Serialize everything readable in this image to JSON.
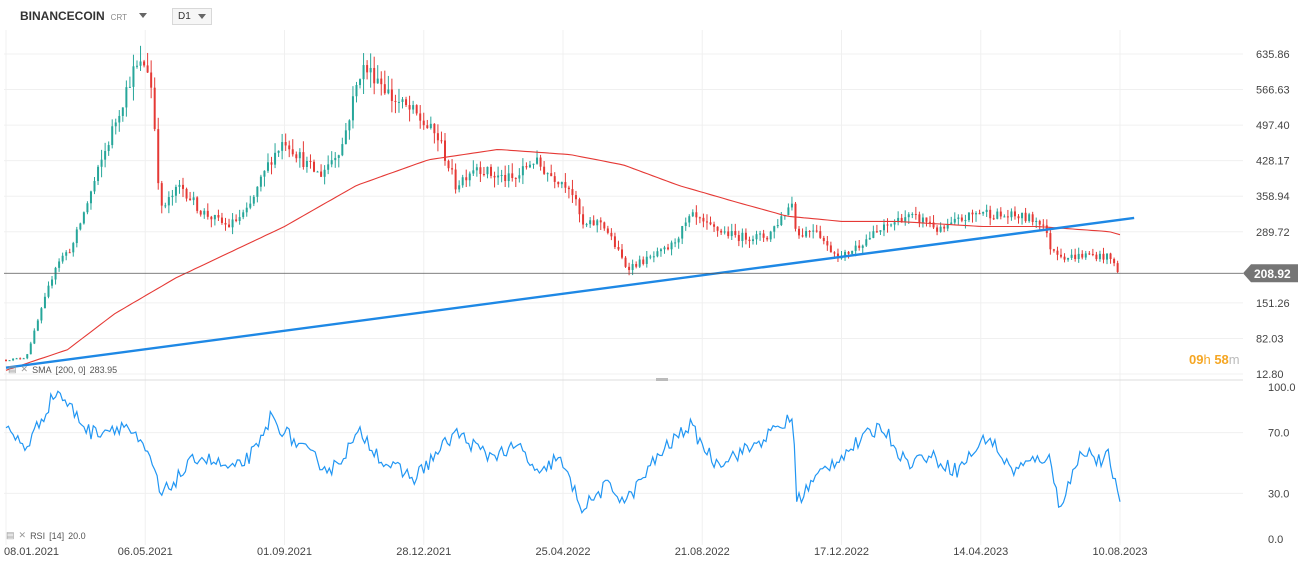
{
  "header": {
    "symbol": "BINANCECOIN",
    "symbol_sub": "CRT",
    "timeframe": "D1"
  },
  "price_axis_ticks": [
    "635.86",
    "566.63",
    "497.40",
    "428.17",
    "358.94",
    "289.72",
    "151.26",
    "82.03",
    "12.80"
  ],
  "current_price": "208.92",
  "countdown": {
    "hours": "09",
    "h_unit": "h",
    "minutes": "58",
    "m_unit": "m"
  },
  "sma_label": {
    "name": "SMA",
    "params": "[200, 0]",
    "value": "283.95"
  },
  "rsi_label": {
    "name": "RSI",
    "params": "[14]",
    "value": "20.0"
  },
  "rsi_axis_ticks": [
    "100.0",
    "70.0",
    "30.0",
    "0.0"
  ],
  "date_ticks": [
    "08.01.2021",
    "06.05.2021",
    "01.09.2021",
    "28.12.2021",
    "25.04.2022",
    "21.08.2022",
    "17.12.2022",
    "14.04.2023",
    "10.08.2023"
  ],
  "colors": {
    "bull": "#26a69a",
    "bear": "#e53935",
    "sma": "#e53935",
    "trendline": "#1e88e5",
    "rsi": "#2196f3",
    "price_label_bg": "#757575"
  },
  "chart_data": [
    {
      "type": "candlestick",
      "title": "BINANCECOIN CRT D1",
      "x_range": [
        "08.01.2021",
        "10.08.2023"
      ],
      "ylim": [
        12.8,
        670
      ],
      "anchors": {
        "x": [
          "2021-01-08",
          "2021-01-25",
          "2021-02-20",
          "2021-03-05",
          "2021-04-10",
          "2021-04-25",
          "2021-05-07",
          "2021-05-12",
          "2021-05-19",
          "2021-06-05",
          "2021-06-22",
          "2021-07-15",
          "2021-08-01",
          "2021-08-20",
          "2021-09-01",
          "2021-09-20",
          "2021-10-01",
          "2021-10-20",
          "2021-11-05",
          "2021-11-20",
          "2021-12-01",
          "2021-12-20",
          "2022-01-10",
          "2022-01-24",
          "2022-02-10",
          "2022-02-24",
          "2022-03-15",
          "2022-03-30",
          "2022-04-15",
          "2022-05-01",
          "2022-05-12",
          "2022-05-28",
          "2022-06-18",
          "2022-07-10",
          "2022-07-25",
          "2022-08-12",
          "2022-08-25",
          "2022-09-20",
          "2022-10-15",
          "2022-11-06",
          "2022-11-09",
          "2022-11-25",
          "2022-12-05",
          "2022-12-17",
          "2023-01-10",
          "2023-02-08",
          "2023-03-01",
          "2023-03-10",
          "2023-03-25",
          "2023-04-15",
          "2023-05-01",
          "2023-05-15",
          "2023-06-05",
          "2023-06-12",
          "2023-06-25",
          "2023-07-15",
          "2023-08-01",
          "2023-08-10"
        ],
        "close": [
          40,
          45,
          230,
          260,
          500,
          600,
          620,
          560,
          330,
          380,
          330,
          300,
          330,
          430,
          470,
          420,
          400,
          460,
          610,
          590,
          550,
          520,
          470,
          380,
          420,
          400,
          390,
          430,
          400,
          380,
          300,
          310,
          220,
          240,
          260,
          320,
          300,
          280,
          280,
          350,
          280,
          300,
          260,
          240,
          280,
          320,
          310,
          290,
          310,
          330,
          320,
          320,
          310,
          260,
          240,
          245,
          240,
          208.92
        ]
      },
      "sma": {
        "name": "SMA [200, 0]",
        "x": [
          "2021-01-08",
          "2021-03-01",
          "2021-04-10",
          "2021-06-01",
          "2021-09-01",
          "2021-11-01",
          "2022-01-01",
          "2022-03-01",
          "2022-05-01",
          "2022-06-15",
          "2022-08-01",
          "2022-09-15",
          "2022-11-01",
          "2022-12-17",
          "2023-02-01",
          "2023-04-15",
          "2023-06-01",
          "2023-08-01",
          "2023-08-10"
        ],
        "values": [
          20,
          60,
          130,
          200,
          300,
          380,
          430,
          450,
          440,
          420,
          380,
          350,
          320,
          310,
          310,
          300,
          300,
          290,
          283.95
        ]
      },
      "trendline": {
        "x": [
          "2021-01-08",
          "2023-08-10"
        ],
        "y": [
          25,
          313
        ]
      }
    },
    {
      "type": "line",
      "title": "RSI [14]",
      "ylim": [
        0,
        100
      ],
      "x": [
        "2021-01-08",
        "2021-01-25",
        "2021-02-20",
        "2021-03-20",
        "2021-04-20",
        "2021-05-12",
        "2021-05-19",
        "2021-06-20",
        "2021-07-20",
        "2021-08-10",
        "2021-08-20",
        "2021-09-15",
        "2021-10-10",
        "2021-11-05",
        "2021-11-25",
        "2021-12-20",
        "2022-01-24",
        "2022-02-20",
        "2022-03-20",
        "2022-04-05",
        "2022-04-20",
        "2022-05-12",
        "2022-06-01",
        "2022-06-18",
        "2022-07-15",
        "2022-08-10",
        "2022-09-01",
        "2022-10-01",
        "2022-11-06",
        "2022-11-09",
        "2022-12-01",
        "2022-12-17",
        "2023-01-20",
        "2023-02-10",
        "2023-03-01",
        "2023-03-25",
        "2023-04-20",
        "2023-05-10",
        "2023-06-10",
        "2023-06-20",
        "2023-07-10",
        "2023-07-25",
        "2023-08-01",
        "2023-08-10"
      ],
      "values": [
        72,
        60,
        98,
        70,
        75,
        50,
        28,
        55,
        45,
        60,
        80,
        60,
        45,
        70,
        50,
        40,
        70,
        55,
        60,
        40,
        55,
        20,
        35,
        25,
        55,
        75,
        50,
        60,
        80,
        25,
        45,
        55,
        75,
        50,
        55,
        45,
        68,
        45,
        55,
        22,
        60,
        50,
        55,
        20
      ]
    }
  ]
}
